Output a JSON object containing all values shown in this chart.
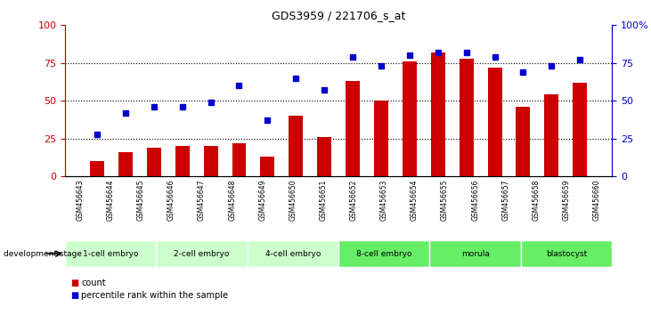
{
  "title": "GDS3959 / 221706_s_at",
  "samples": [
    "GSM456643",
    "GSM456644",
    "GSM456645",
    "GSM456646",
    "GSM456647",
    "GSM456648",
    "GSM456649",
    "GSM456650",
    "GSM456651",
    "GSM456652",
    "GSM456653",
    "GSM456654",
    "GSM456655",
    "GSM456656",
    "GSM456657",
    "GSM456658",
    "GSM456659",
    "GSM456660"
  ],
  "count": [
    10,
    16,
    19,
    20,
    20,
    22,
    13,
    40,
    26,
    63,
    50,
    76,
    82,
    78,
    72,
    46,
    54,
    62
  ],
  "percentile": [
    28,
    42,
    46,
    46,
    49,
    60,
    37,
    65,
    57,
    79,
    73,
    80,
    82,
    82,
    79,
    69,
    73,
    77
  ],
  "bar_color": "#cc0000",
  "dot_color": "#0000cc",
  "ylim": [
    0,
    100
  ],
  "yticks": [
    0,
    25,
    50,
    75,
    100
  ],
  "stages": [
    {
      "label": "1-cell embryo",
      "start": 0,
      "end": 3,
      "color": "#ccffcc"
    },
    {
      "label": "2-cell embryo",
      "start": 3,
      "end": 6,
      "color": "#ccffcc"
    },
    {
      "label": "4-cell embryo",
      "start": 6,
      "end": 9,
      "color": "#ccffcc"
    },
    {
      "label": "8-cell embryo",
      "start": 9,
      "end": 12,
      "color": "#66ee66"
    },
    {
      "label": "morula",
      "start": 12,
      "end": 15,
      "color": "#66ee66"
    },
    {
      "label": "blastocyst",
      "start": 15,
      "end": 18,
      "color": "#66ee66"
    }
  ],
  "stage_header": "development stage",
  "legend_count_label": "count",
  "legend_pct_label": "percentile rank within the sample",
  "bar_color_label": "#cc0000",
  "dot_color_label": "#0000cc",
  "tick_label_color_left": "#cc0000",
  "tick_label_color_right": "#0000cc",
  "bg_color": "#ffffff",
  "bar_width": 0.5,
  "label_bg_color": "#cccccc"
}
